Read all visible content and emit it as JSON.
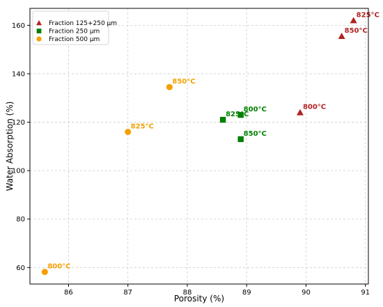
{
  "chart_data": {
    "type": "scatter",
    "xlabel": "Porosity (%)",
    "ylabel": "Water Absorption (%)",
    "xlim": [
      85.35,
      91.05
    ],
    "ylim": [
      53.2,
      167.0
    ],
    "xticks": [
      86,
      87,
      88,
      89,
      90,
      91
    ],
    "yticks": [
      60,
      80,
      100,
      120,
      140,
      160
    ],
    "grid": true,
    "legend_position": "top-left",
    "series": [
      {
        "name": "Fraction 125+250 µm",
        "marker": "triangle",
        "color": "#b22222",
        "points": [
          {
            "x": 90.8,
            "y": 162,
            "label": "825°C"
          },
          {
            "x": 90.6,
            "y": 155.5,
            "label": "850°C"
          },
          {
            "x": 89.9,
            "y": 124,
            "label": "800°C"
          }
        ]
      },
      {
        "name": "Fraction 250 µm",
        "marker": "square",
        "color": "#008000",
        "points": [
          {
            "x": 88.9,
            "y": 123,
            "label": "800°C"
          },
          {
            "x": 88.6,
            "y": 121,
            "label": "825°C"
          },
          {
            "x": 88.9,
            "y": 113,
            "label": "850°C"
          }
        ]
      },
      {
        "name": "Fraction 500 µm",
        "marker": "circle",
        "color": "#f5a000",
        "points": [
          {
            "x": 87.7,
            "y": 134.5,
            "label": "850°C"
          },
          {
            "x": 87.0,
            "y": 116,
            "label": "825°C"
          },
          {
            "x": 85.6,
            "y": 58.2,
            "label": "800°C"
          }
        ]
      }
    ]
  }
}
